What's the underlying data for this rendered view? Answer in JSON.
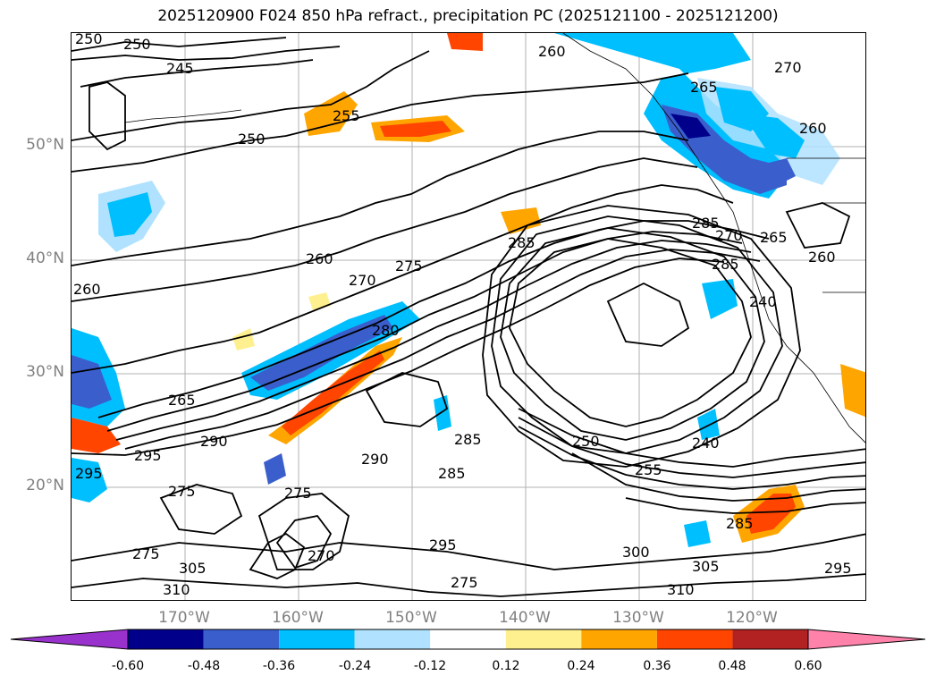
{
  "title": "2025120900 F024 850 hPa refract., precipitation PC (2025121100 - 2025121200)",
  "map": {
    "lat_labels": [
      "50°N",
      "40°N",
      "30°N",
      "20°N"
    ],
    "lon_labels": [
      "170°W",
      "160°W",
      "150°W",
      "140°W",
      "130°W",
      "120°W"
    ],
    "contour_labels": [
      "250",
      "245",
      "255",
      "250",
      "260",
      "270",
      "265",
      "260",
      "270",
      "275",
      "260",
      "280",
      "285",
      "285",
      "265",
      "290",
      "295",
      "295",
      "275",
      "290",
      "275",
      "285",
      "285",
      "295",
      "270",
      "275",
      "305",
      "310",
      "275",
      "300",
      "305",
      "310",
      "295",
      "285",
      "255",
      "240",
      "250",
      "240",
      "285",
      "270",
      "265",
      "260",
      "260"
    ]
  },
  "colorbar": {
    "colors": [
      "#9932cc",
      "#00008b",
      "#3a5fcd",
      "#00bfff",
      "#b0e2ff",
      "#ffffff",
      "#fff08f",
      "#ffa500",
      "#ff4500",
      "#b22222",
      "#ff82ab"
    ],
    "tick_labels": [
      "-0.60",
      "-0.48",
      "-0.36",
      "-0.24",
      "-0.12",
      "0.12",
      "0.24",
      "0.36",
      "0.48",
      "0.60"
    ]
  }
}
